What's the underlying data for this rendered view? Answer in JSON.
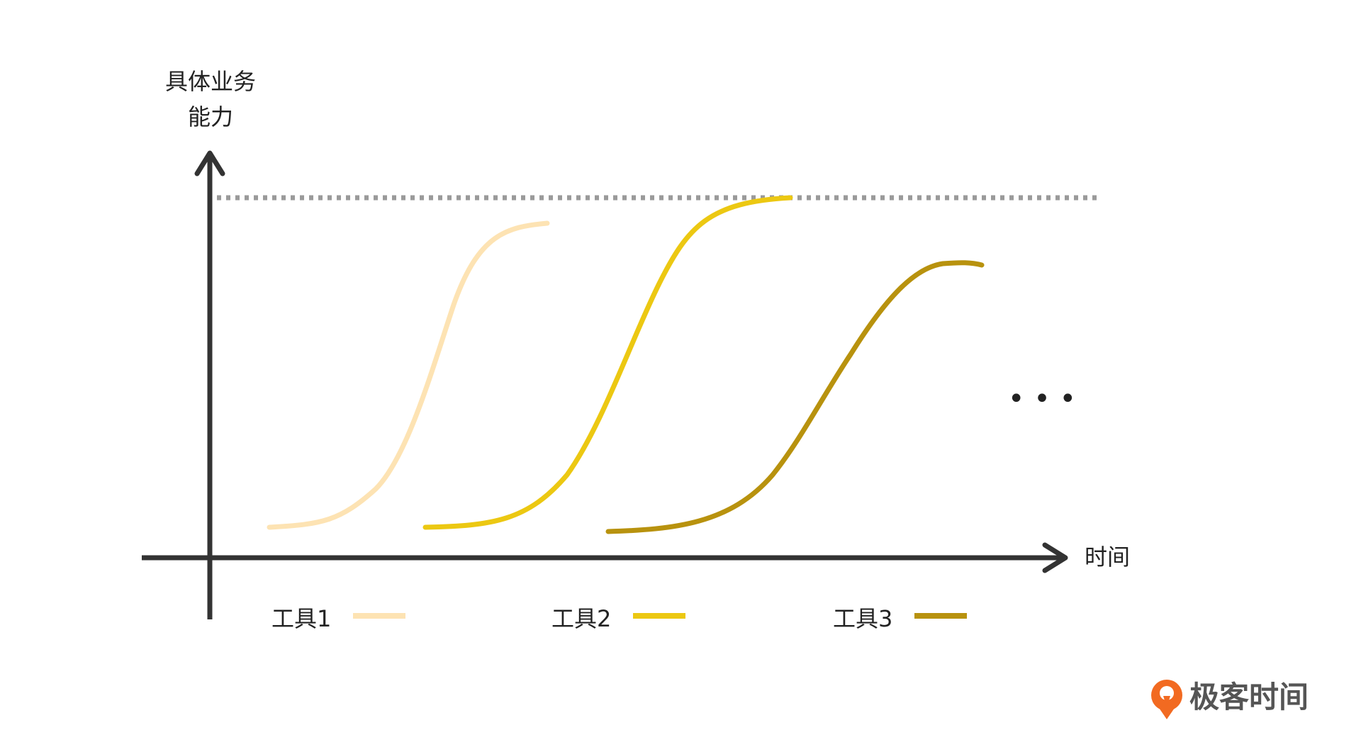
{
  "diagram": {
    "y_axis_label_line1": "具体业务",
    "y_axis_label_line2": "能力",
    "x_axis_label": "时间",
    "ellipsis": "• • •",
    "axis_color": "#333333",
    "ceiling_line_color": "#9a9a9a",
    "curves": [
      {
        "label": "工具1",
        "color": "#fde3b3"
      },
      {
        "label": "工具2",
        "color": "#ecc812"
      },
      {
        "label": "工具3",
        "color": "#b8920e"
      }
    ]
  },
  "brand": {
    "name": "极客时间",
    "logo_color": "#f26a21",
    "text_color": "#555555"
  }
}
